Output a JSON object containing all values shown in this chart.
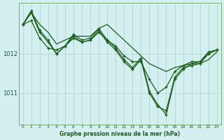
{
  "title": "Graphe pression niveau de la mer (hPa)",
  "background_color": "#d4efef",
  "line_color": "#1a5c1a",
  "grid_color": "#b0cfcf",
  "x_ticks": [
    0,
    1,
    2,
    3,
    4,
    5,
    6,
    7,
    8,
    9,
    10,
    11,
    12,
    13,
    14,
    15,
    16,
    17,
    18,
    19,
    20,
    21,
    22,
    23
  ],
  "ylim": [
    1010.2,
    1013.3
  ],
  "yticks": [
    1011,
    1012
  ],
  "series": [
    {
      "data": [
        1012.75,
        1013.05,
        1012.75,
        1012.55,
        1012.25,
        1012.35,
        1012.45,
        1012.45,
        1012.45,
        1012.65,
        1012.75,
        1012.55,
        1012.35,
        1012.15,
        1011.95,
        1011.75,
        1011.65,
        1011.55,
        1011.65,
        1011.7,
        1011.75,
        1011.75,
        1011.85,
        1012.05
      ],
      "marker": false,
      "linewidth": 0.9
    },
    {
      "data": [
        1012.75,
        1013.1,
        1012.6,
        1012.35,
        1012.0,
        1012.2,
        1012.5,
        1012.35,
        1012.4,
        1012.65,
        1012.35,
        1012.15,
        1011.85,
        1011.65,
        1011.9,
        1011.05,
        1010.7,
        1010.45,
        1011.35,
        1011.6,
        1011.75,
        1011.8,
        1012.0,
        1012.1
      ],
      "marker": true,
      "linewidth": 0.9
    },
    {
      "data": [
        1012.75,
        1013.05,
        1012.55,
        1012.3,
        1012.0,
        1012.2,
        1012.45,
        1012.3,
        1012.35,
        1012.6,
        1012.3,
        1012.1,
        1011.8,
        1011.6,
        1011.85,
        1011.0,
        1010.65,
        1010.55,
        1011.4,
        1011.65,
        1011.7,
        1011.75,
        1012.0,
        1012.1
      ],
      "marker": true,
      "linewidth": 0.9
    },
    {
      "data": [
        1012.75,
        1012.85,
        1012.4,
        1012.15,
        1012.1,
        1012.2,
        1012.4,
        1012.3,
        1012.35,
        1012.55,
        1012.35,
        1012.2,
        1011.95,
        1011.8,
        1011.8,
        1011.35,
        1011.0,
        1011.15,
        1011.55,
        1011.7,
        1011.8,
        1011.8,
        1012.05,
        1012.1
      ],
      "marker": true,
      "linewidth": 0.9
    }
  ]
}
